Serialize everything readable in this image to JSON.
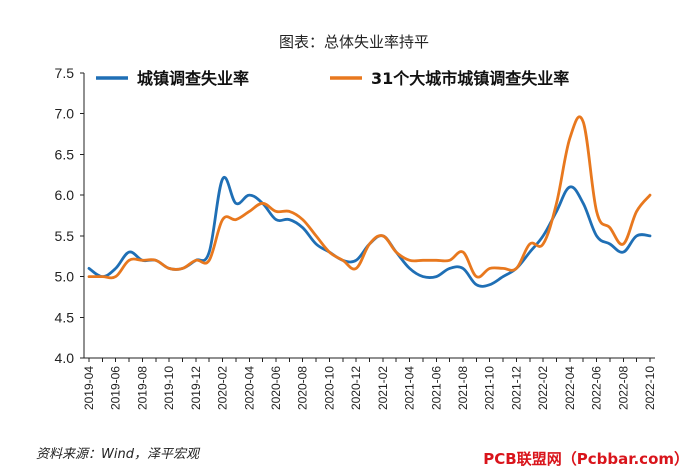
{
  "title": "图表：总体失业率持平",
  "source": "资料来源：Wind，泽平宏观",
  "watermark": "PCB联盟网（Pcbbar.com）",
  "chart_data": {
    "type": "line",
    "ylim": [
      4.0,
      7.5
    ],
    "yticks": [
      "4.0",
      "4.5",
      "5.0",
      "5.5",
      "6.0",
      "6.5",
      "7.0",
      "7.5"
    ],
    "xticks": [
      "2019-04",
      "2019-06",
      "2019-08",
      "2019-10",
      "2019-12",
      "2020-02",
      "2020-04",
      "2020-06",
      "2020-08",
      "2020-10",
      "2020-12",
      "2021-02",
      "2021-04",
      "2021-06",
      "2021-08",
      "2021-10",
      "2021-12",
      "2022-02",
      "2022-04",
      "2022-06",
      "2022-08",
      "2022-10"
    ],
    "x": [
      "2019-04",
      "2019-05",
      "2019-06",
      "2019-07",
      "2019-08",
      "2019-09",
      "2019-10",
      "2019-11",
      "2019-12",
      "2020-01",
      "2020-02",
      "2020-03",
      "2020-04",
      "2020-05",
      "2020-06",
      "2020-07",
      "2020-08",
      "2020-09",
      "2020-10",
      "2020-11",
      "2020-12",
      "2021-01",
      "2021-02",
      "2021-03",
      "2021-04",
      "2021-05",
      "2021-06",
      "2021-07",
      "2021-08",
      "2021-09",
      "2021-10",
      "2021-11",
      "2021-12",
      "2022-01",
      "2022-02",
      "2022-03",
      "2022-04",
      "2022-05",
      "2022-06",
      "2022-07",
      "2022-08",
      "2022-09",
      "2022-10"
    ],
    "grid": false,
    "legend": "top",
    "series": [
      {
        "name": "城镇调查失业率",
        "color": "#1f6fb5",
        "values": [
          5.1,
          5.0,
          5.1,
          5.3,
          5.2,
          5.2,
          5.1,
          5.1,
          5.2,
          5.3,
          6.2,
          5.9,
          6.0,
          5.9,
          5.7,
          5.7,
          5.6,
          5.4,
          5.3,
          5.2,
          5.2,
          5.4,
          5.5,
          5.3,
          5.1,
          5.0,
          5.0,
          5.1,
          5.1,
          4.9,
          4.9,
          5.0,
          5.1,
          5.3,
          5.5,
          5.8,
          6.1,
          5.9,
          5.5,
          5.4,
          5.3,
          5.5,
          5.5
        ]
      },
      {
        "name": "31个大城市城镇调查失业率",
        "color": "#e8781e",
        "values": [
          5.0,
          5.0,
          5.0,
          5.2,
          5.2,
          5.2,
          5.1,
          5.1,
          5.2,
          5.2,
          5.7,
          5.7,
          5.8,
          5.9,
          5.8,
          5.8,
          5.7,
          5.5,
          5.3,
          5.2,
          5.1,
          5.4,
          5.5,
          5.3,
          5.2,
          5.2,
          5.2,
          5.2,
          5.3,
          5.0,
          5.1,
          5.1,
          5.1,
          5.4,
          5.4,
          5.9,
          6.7,
          6.9,
          5.8,
          5.6,
          5.4,
          5.8,
          6.0
        ]
      }
    ]
  }
}
